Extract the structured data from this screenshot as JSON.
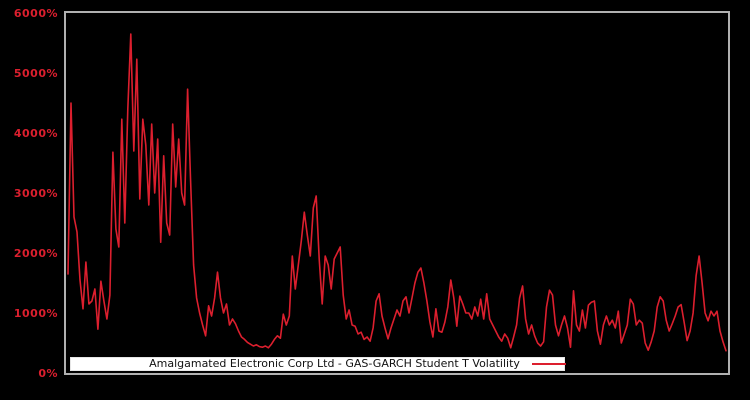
{
  "figure": {
    "background_color": "#000000",
    "plot_border_color": "#b0b0b0",
    "axis_tick_color": "#dc1f2e",
    "legend": {
      "background": "#ffffff",
      "label": "Amalgamated Electronic Corp Ltd - GAS-GARCH Student T Volatility",
      "sample_color": "#dc1f2e"
    }
  },
  "chart_data": {
    "type": "line",
    "title": "",
    "xlabel": "",
    "ylabel": "",
    "grid": false,
    "legend_position": "lower center",
    "line_color": "#dc1f2e",
    "y_unit": "%",
    "ylim": [
      0,
      6000
    ],
    "y_tick_values": [
      0,
      1000,
      2000,
      3000,
      4000,
      5000,
      6000
    ],
    "y_tick_labels": [
      "0%",
      "1000%",
      "2000%",
      "3000%",
      "4000%",
      "5000%",
      "6000%"
    ],
    "x_tick_labels": [],
    "series": [
      {
        "name": "Amalgamated Electronic Corp Ltd - GAS-GARCH Student T Volatility",
        "unit": "percent",
        "values": [
          1650,
          4500,
          2600,
          2350,
          1550,
          1070,
          1850,
          1150,
          1200,
          1400,
          730,
          1530,
          1200,
          900,
          1300,
          3680,
          2400,
          2100,
          4230,
          2500,
          4400,
          5650,
          3700,
          5230,
          2900,
          4230,
          3800,
          2800,
          4150,
          3000,
          3900,
          2180,
          3620,
          2500,
          2300,
          4150,
          3100,
          3900,
          3000,
          2800,
          4730,
          3200,
          1800,
          1250,
          1000,
          800,
          620,
          1120,
          950,
          1250,
          1680,
          1250,
          1000,
          1150,
          800,
          900,
          820,
          700,
          600,
          560,
          510,
          480,
          450,
          470,
          440,
          430,
          450,
          420,
          480,
          560,
          620,
          580,
          980,
          800,
          950,
          1950,
          1400,
          1800,
          2200,
          2680,
          2300,
          1950,
          2750,
          2950,
          1900,
          1150,
          1950,
          1800,
          1400,
          1900,
          2000,
          2100,
          1300,
          900,
          1050,
          800,
          780,
          650,
          680,
          560,
          600,
          530,
          750,
          1200,
          1320,
          950,
          750,
          570,
          750,
          900,
          1050,
          950,
          1200,
          1270,
          1000,
          1250,
          1500,
          1680,
          1750,
          1500,
          1200,
          850,
          600,
          1070,
          700,
          680,
          850,
          1100,
          1550,
          1250,
          780,
          1280,
          1150,
          1000,
          1000,
          900,
          1100,
          950,
          1230,
          900,
          1320,
          900,
          800,
          700,
          600,
          530,
          650,
          580,
          420,
          600,
          800,
          1250,
          1450,
          900,
          650,
          800,
          620,
          500,
          450,
          520,
          1100,
          1380,
          1300,
          800,
          620,
          800,
          950,
          750,
          430,
          1370,
          800,
          700,
          1050,
          750,
          1130,
          1180,
          1200,
          700,
          480,
          800,
          950,
          800,
          880,
          750,
          1030,
          500,
          650,
          800,
          1230,
          1150,
          800,
          880,
          830,
          500,
          380,
          520,
          700,
          1100,
          1270,
          1200,
          880,
          700,
          820,
          950,
          1100,
          1140,
          850,
          540,
          700,
          1000,
          1620,
          1950,
          1500,
          1000,
          870,
          1030,
          950,
          1030,
          700,
          520,
          370
        ]
      }
    ]
  }
}
